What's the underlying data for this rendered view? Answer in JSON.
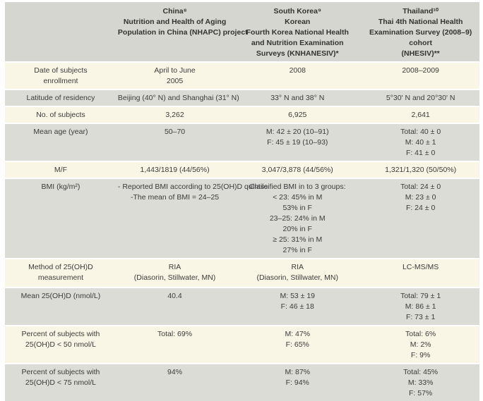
{
  "colors": {
    "row_gray": "#dcdcd6",
    "row_cream": "#faf6e5",
    "header_gray": "#d5d6d0",
    "text": "#3b3b3b"
  },
  "header": {
    "label": "",
    "china": [
      "China⁸",
      "Nutrition and Health of Aging",
      "Population in China (NHAPC) project"
    ],
    "south_korea": [
      "South Korea⁹",
      "Korean",
      "Fourth Korea National Health",
      "and Nutrition Examination",
      "Surveys (KNHANESIV)*"
    ],
    "thailand": [
      "Thailand¹⁰",
      "Thai 4th National Health",
      "Examination Survey (2008–9)",
      "cohort",
      "(NHESIV)**"
    ]
  },
  "rows": [
    {
      "label": [
        "Date of subjects",
        "enrollment"
      ],
      "china": [
        "April to June",
        "2005"
      ],
      "south_korea": [
        "2008"
      ],
      "thailand": [
        "2008–2009"
      ]
    },
    {
      "label": [
        "Latitude of residency"
      ],
      "china": [
        "Beijing (40° N) and Shanghai (31° N)"
      ],
      "south_korea": [
        "33° N and 38° N"
      ],
      "thailand": [
        "5°30' N and 20°30' N"
      ]
    },
    {
      "label": [
        "No. of subjects"
      ],
      "china": [
        "3,262"
      ],
      "south_korea": [
        "6,925"
      ],
      "thailand": [
        "2,641"
      ]
    },
    {
      "label": [
        "Mean age (year)"
      ],
      "china": [
        "50–70"
      ],
      "south_korea": [
        "M: 42 ± 20 (10–91)",
        "F: 45 ± 19 (10–93)"
      ],
      "thailand": [
        "Total: 40 ± 0",
        "M: 40 ± 1",
        "F: 41 ± 0"
      ]
    },
    {
      "label": [
        "M/F"
      ],
      "china": [
        "1,443/1819 (44/56%)"
      ],
      "south_korea": [
        "3,047/3,878 (44/56%)"
      ],
      "thailand": [
        "1,321/1,320 (50/50%)"
      ]
    },
    {
      "label": [
        "BMI (kg/m²)"
      ],
      "china": [
        "- Reported BMI according to 25(OH)D quintile",
        "-The mean of BMI = 24–25"
      ],
      "south_korea": [
        "Classified BMI in to 3 groups:",
        "< 23: 45% in M",
        "53% in F",
        "23–25: 24% in M",
        "20% in F",
        "≥ 25: 31% in M",
        "27% in F"
      ],
      "thailand": [
        "Total: 24 ± 0",
        "M: 23 ± 0",
        "F: 24 ± 0"
      ]
    },
    {
      "label": [
        "Method of 25(OH)D",
        "measurement"
      ],
      "china": [
        "RIA",
        "(Diasorin, Stillwater, MN)"
      ],
      "south_korea": [
        "RIA",
        "(Diasorin, Stillwater, MN)"
      ],
      "thailand": [
        "LC-MS/MS"
      ]
    },
    {
      "label": [
        "Mean 25(OH)D (nmol/L)"
      ],
      "china": [
        "40.4"
      ],
      "south_korea": [
        "M: 53 ± 19",
        "F: 46 ± 18"
      ],
      "thailand": [
        "Total: 79 ± 1",
        "M: 86 ± 1",
        "F: 73 ± 1"
      ]
    },
    {
      "label": [
        "Percent of subjects with",
        "25(OH)D < 50 nmol/L"
      ],
      "china": [
        "Total: 69%"
      ],
      "south_korea": [
        "M: 47%",
        "F: 65%"
      ],
      "thailand": [
        "Total: 6%",
        "M: 2%",
        "F: 9%"
      ]
    },
    {
      "label": [
        "Percent of subjects with",
        "25(OH)D < 75 nmol/L"
      ],
      "china": [
        "94%"
      ],
      "south_korea": [
        "M: 87%",
        "F: 94%"
      ],
      "thailand": [
        "Total: 45%",
        "M: 33%",
        "F: 57%"
      ]
    }
  ]
}
